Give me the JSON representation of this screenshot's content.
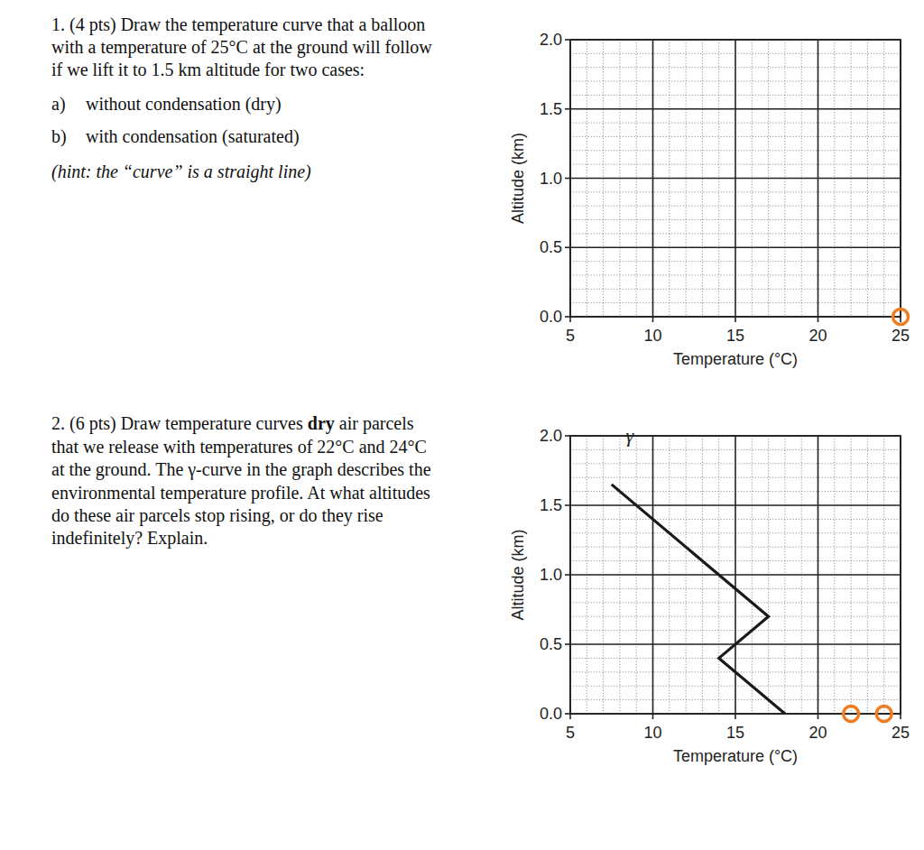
{
  "questions": [
    {
      "prompt": [
        "1. (4 pts) Draw the temperature curve that a balloon",
        "with a temperature of 25°C at the ground will follow",
        "if we lift it to 1.5 km altitude for two cases:"
      ],
      "items": [
        {
          "label": "a)",
          "text": "without condensation (dry)"
        },
        {
          "label": "b)",
          "text": "with condensation (saturated)"
        }
      ],
      "hint": "(hint: the “curve” is a straight line)"
    },
    {
      "prompt": [
        [
          {
            "text": "2. (6 pts) Draw temperature curves "
          },
          {
            "text": "dry",
            "bold": true
          },
          {
            "text": " air parcels"
          }
        ],
        "that we release with temperatures of 22°C and 24°C",
        "at the ground. The γ-curve in the graph describes the",
        "environmental temperature profile. At what altitudes",
        "do these air parcels stop rising, or do they rise",
        "indefinitely? Explain."
      ]
    }
  ],
  "chart_data": [
    {
      "type": "scatter",
      "xlabel": "Temperature (°C)",
      "ylabel": "Altitude (km)",
      "xlim": [
        5,
        25
      ],
      "ylim": [
        0,
        2
      ],
      "xticks": [
        5,
        10,
        15,
        20,
        25
      ],
      "yticks": [
        {
          "value": 0,
          "label": "0.0"
        },
        0.5,
        {
          "value": 1,
          "label": "1.0"
        },
        1.5,
        {
          "value": 2,
          "label": "2.0"
        }
      ],
      "grid": true,
      "series": [
        {
          "type": "scatter",
          "marker": "circle",
          "color": "#f07c22",
          "x": [
            25
          ],
          "values": [
            0
          ]
        }
      ]
    },
    {
      "type": "line",
      "xlabel": "Temperature (°C)",
      "ylabel": "Altitude (km)",
      "xlim": [
        5,
        25
      ],
      "ylim": [
        0,
        2
      ],
      "xticks": [
        5,
        10,
        15,
        20,
        25
      ],
      "yticks": [
        {
          "value": 0,
          "label": "0.0"
        },
        0.5,
        {
          "value": 1,
          "label": "1.0"
        },
        1.5,
        {
          "value": 2,
          "label": "2.0"
        }
      ],
      "grid": true,
      "series": [
        {
          "name": "γ",
          "type": "line",
          "line_style": "solid",
          "color": "#1a1a1a",
          "x": [
            18,
            14,
            17,
            7.5
          ],
          "values": [
            0,
            0.4,
            0.7,
            1.65
          ]
        },
        {
          "type": "scatter",
          "marker": "circle",
          "color": "#f07c22",
          "x": [
            22,
            24
          ],
          "values": [
            0,
            0
          ]
        }
      ]
    }
  ]
}
